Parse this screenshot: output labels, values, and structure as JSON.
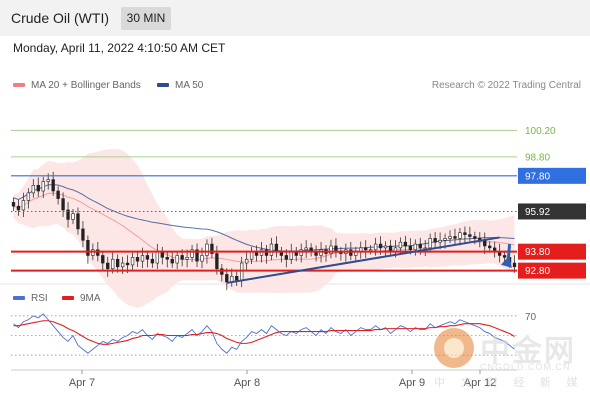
{
  "header": {
    "title": "Crude Oil (WTI)",
    "timeframe": "30 MIN"
  },
  "datetime": "Monday, April 11, 2022 4:10:50 AM CET",
  "legend": {
    "bollinger_label": "MA 20 + Bollinger Bands",
    "ma50_label": "MA 50",
    "credit": "Research © 2022 Trading Central",
    "bollinger_color": "#f08080",
    "ma50_color": "#2e4c8e"
  },
  "rsi_legend": {
    "rsi_label": "RSI",
    "ma9_label": "9MA",
    "rsi_color": "#4f6fd1",
    "ma9_color": "#e02020"
  },
  "watermark": {
    "cn_name": "中金网",
    "url": "CNGOLD.COM.CN",
    "tagline": "中 文 财 经 新 媒 体"
  },
  "chart_data": [
    {
      "type": "candlestick",
      "title": "Crude Oil (WTI)",
      "timeframe": "30 MIN",
      "x_tick_labels": [
        "Apr 7",
        "Apr 8",
        "Apr 9",
        "Apr 12"
      ],
      "ylim": [
        92.2,
        101.8
      ],
      "close_approx": [
        96.2,
        96.0,
        96.5,
        96.9,
        97.3,
        97.0,
        97.5,
        97.6,
        97.0,
        96.6,
        96.0,
        95.5,
        95.8,
        95.0,
        94.4,
        93.6,
        93.9,
        93.6,
        93.2,
        92.9,
        93.4,
        93.0,
        93.2,
        93.1,
        93.5,
        93.3,
        93.6,
        93.4,
        93.2,
        93.8,
        93.5,
        93.4,
        93.2,
        93.6,
        93.4,
        93.5,
        93.9,
        93.3,
        93.6,
        94.2,
        93.7,
        92.9,
        92.6,
        92.2,
        92.5,
        92.3,
        93.2,
        93.4,
        93.8,
        93.6,
        93.9,
        93.6,
        94.2,
        93.8,
        93.6,
        93.4,
        93.8,
        93.6,
        93.9,
        94.0,
        93.8,
        93.6,
        93.9,
        93.7,
        94.1,
        93.8,
        93.7,
        93.9,
        93.6,
        93.8,
        94.0,
        93.9,
        93.9,
        94.2,
        94.0,
        94.1,
        93.8,
        94.0,
        94.3,
        94.1,
        93.9,
        94.2,
        94.0,
        94.0,
        94.5,
        94.3,
        94.4,
        94.5,
        94.6,
        94.5,
        94.8,
        94.7,
        94.6,
        94.5,
        94.4,
        94.1,
        94.0,
        93.8,
        93.6,
        93.5,
        93.2,
        93.0
      ],
      "levels": {
        "resistance": [
          100.2,
          98.8,
          97.8
        ],
        "current": 95.92,
        "support": [
          93.8,
          92.8
        ]
      },
      "level_colors": {
        "resistance": "#7ab648",
        "pivot": "#2f6fe0",
        "current": "#333333",
        "support": "#e41d1d"
      },
      "annotations": [
        "projected downside arrow toward 92.80"
      ],
      "subplot": {
        "name": "RSI",
        "series": [
          {
            "name": "RSI"
          },
          {
            "name": "9MA"
          }
        ],
        "ylim": [
          20,
          80
        ],
        "tick_labels": [
          "70"
        ],
        "rsi_approx": [
          62,
          58,
          64,
          66,
          70,
          68,
          72,
          66,
          60,
          54,
          48,
          44,
          50,
          40,
          36,
          32,
          36,
          40,
          44,
          42,
          46,
          44,
          48,
          50,
          54,
          52,
          56,
          50,
          46,
          52,
          50,
          48,
          44,
          50,
          48,
          52,
          56,
          50,
          54,
          60,
          54,
          42,
          36,
          32,
          38,
          36,
          44,
          48,
          54,
          52,
          56,
          52,
          60,
          56,
          52,
          50,
          54,
          52,
          56,
          58,
          54,
          50,
          56,
          52,
          58,
          54,
          52,
          56,
          50,
          54,
          58,
          56,
          56,
          60,
          56,
          58,
          52,
          56,
          60,
          58,
          54,
          58,
          56,
          56,
          62,
          58,
          60,
          62,
          64,
          62,
          66,
          64,
          62,
          60,
          58,
          54,
          52,
          48,
          46,
          44,
          40,
          36
        ],
        "ma9_approx": [
          60,
          60,
          61,
          62,
          63,
          64,
          65,
          65,
          64,
          62,
          60,
          57,
          55,
          52,
          49,
          46,
          44,
          42,
          41,
          41,
          42,
          43,
          44,
          45,
          47,
          48,
          50,
          50,
          50,
          51,
          51,
          50,
          50,
          50,
          50,
          50,
          51,
          51,
          52,
          53,
          53,
          52,
          50,
          47,
          45,
          43,
          42,
          42,
          43,
          45,
          47,
          49,
          51,
          53,
          54,
          54,
          54,
          54,
          54,
          54,
          54,
          54,
          54,
          54,
          55,
          55,
          55,
          55,
          55,
          55,
          55,
          55,
          55,
          56,
          56,
          57,
          57,
          57,
          57,
          57,
          57,
          57,
          57,
          57,
          58,
          58,
          59,
          59,
          60,
          60,
          61,
          62,
          62,
          62,
          62,
          61,
          60,
          58,
          56,
          54,
          52,
          49
        ]
      }
    }
  ]
}
